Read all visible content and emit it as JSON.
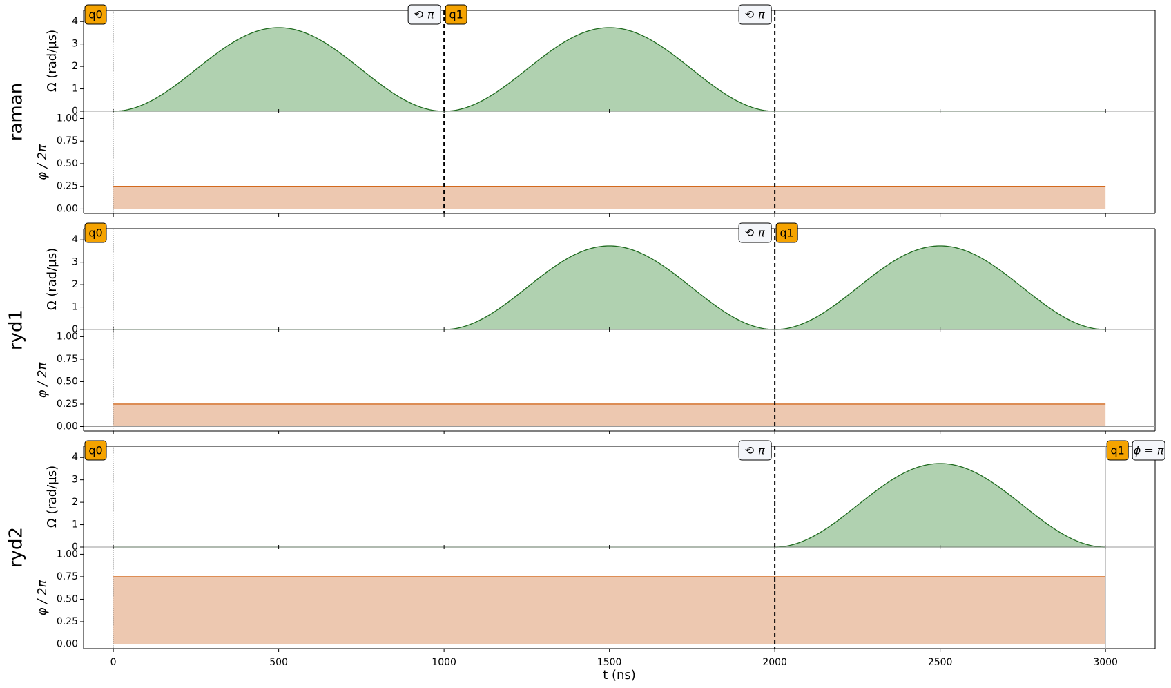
{
  "chart_data": {
    "type": "area",
    "xlabel": "t (ns)",
    "xlim": [
      -90,
      3150
    ],
    "x_ticks": [
      0,
      500,
      1000,
      1500,
      2000,
      2500,
      3000
    ],
    "amplitude": {
      "ylabel": "Ω (rad/µs)",
      "ylim": [
        0,
        4.5
      ],
      "ticks": [
        0,
        1,
        2,
        3,
        4
      ],
      "tick_labels": [
        "0",
        "1",
        "2",
        "3",
        "4"
      ],
      "line_color": "#1f6b1f",
      "fill_color": "#b0d1b0",
      "pulse_peak": 3.73,
      "pulse_duration_ns": 1000
    },
    "phase": {
      "ylabel": "φ / 2π",
      "ylim": [
        -0.05,
        1.08
      ],
      "ticks": [
        0,
        0.25,
        0.5,
        0.75,
        1.0
      ],
      "tick_labels": [
        "0.00",
        "0.25",
        "0.50",
        "0.75",
        "1.00"
      ],
      "line_color": "#d2691e",
      "fill_color": "#edc8b0"
    },
    "channels": [
      {
        "name": "raman",
        "pulses": [
          {
            "start": 0,
            "end": 1000
          },
          {
            "start": 1000,
            "end": 2000
          }
        ],
        "phase": [
          {
            "start": 0,
            "end": 3000,
            "value": 0.25
          }
        ],
        "dashed_lines": [
          1000,
          2000
        ],
        "end_line": false,
        "tags": [
          {
            "x": 0,
            "text": "q0",
            "kind": "target",
            "align": "right"
          },
          {
            "x": 1000,
            "text": "⟲ π",
            "kind": "phase",
            "align": "left"
          },
          {
            "x": 1000,
            "text": "q1",
            "kind": "target",
            "align": "right"
          },
          {
            "x": 2000,
            "text": "⟲ π",
            "kind": "phase",
            "align": "left"
          }
        ]
      },
      {
        "name": "ryd1",
        "pulses": [
          {
            "start": 1000,
            "end": 2000
          },
          {
            "start": 2000,
            "end": 3000
          }
        ],
        "phase": [
          {
            "start": 0,
            "end": 3000,
            "value": 0.25
          }
        ],
        "dashed_lines": [
          2000
        ],
        "end_line": false,
        "tags": [
          {
            "x": 0,
            "text": "q0",
            "kind": "target",
            "align": "right"
          },
          {
            "x": 2000,
            "text": "⟲ π",
            "kind": "phase",
            "align": "left"
          },
          {
            "x": 2000,
            "text": "q1",
            "kind": "target",
            "align": "right"
          }
        ]
      },
      {
        "name": "ryd2",
        "pulses": [
          {
            "start": 2000,
            "end": 3000
          }
        ],
        "phase": [
          {
            "start": 0,
            "end": 3000,
            "value": 0.75
          }
        ],
        "dashed_lines": [
          2000
        ],
        "end_line": true,
        "tags": [
          {
            "x": 0,
            "text": "q0",
            "kind": "target",
            "align": "right"
          },
          {
            "x": 2000,
            "text": "⟲ π",
            "kind": "phase",
            "align": "left"
          },
          {
            "x": 3000,
            "text": "q1",
            "kind": "target",
            "align": "right"
          },
          {
            "x": 3000,
            "text": "ϕ = π",
            "kind": "phase",
            "align": "after"
          }
        ]
      }
    ]
  },
  "colors": {
    "tag_target_fill": "#f5a300",
    "tag_phase_fill": "#f4f6fa",
    "zero_line": "#9a9a9a"
  }
}
